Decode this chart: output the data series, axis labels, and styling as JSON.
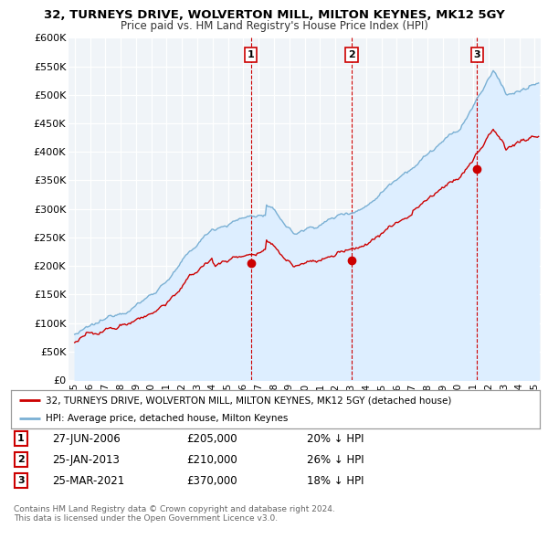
{
  "title": "32, TURNEYS DRIVE, WOLVERTON MILL, MILTON KEYNES, MK12 5GY",
  "subtitle": "Price paid vs. HM Land Registry's House Price Index (HPI)",
  "yticks": [
    0,
    50000,
    100000,
    150000,
    200000,
    250000,
    300000,
    350000,
    400000,
    450000,
    500000,
    550000,
    600000
  ],
  "ytick_labels": [
    "£0",
    "£50K",
    "£100K",
    "£150K",
    "£200K",
    "£250K",
    "£300K",
    "£350K",
    "£400K",
    "£450K",
    "£500K",
    "£550K",
    "£600K"
  ],
  "sale_points": [
    {
      "num": 1,
      "date_str": "27-JUN-2006",
      "year": 2006.49,
      "price": 205000,
      "label": "20% ↓ HPI"
    },
    {
      "num": 2,
      "date_str": "25-JAN-2013",
      "year": 2013.07,
      "price": 210000,
      "label": "26% ↓ HPI"
    },
    {
      "num": 3,
      "date_str": "25-MAR-2021",
      "year": 2021.23,
      "price": 370000,
      "label": "18% ↓ HPI"
    }
  ],
  "legend_property": "32, TURNEYS DRIVE, WOLVERTON MILL, MILTON KEYNES, MK12 5GY (detached house)",
  "legend_hpi": "HPI: Average price, detached house, Milton Keynes",
  "footnote1": "Contains HM Land Registry data © Crown copyright and database right 2024.",
  "footnote2": "This data is licensed under the Open Government Licence v3.0.",
  "property_color": "#cc0000",
  "hpi_color": "#7ab0d4",
  "hpi_fill_color": "#ddeeff",
  "background_color": "#ffffff",
  "plot_bg_color": "#f0f4f8",
  "grid_color": "#ffffff",
  "xlim": [
    1994.6,
    2025.4
  ],
  "ylim": [
    0,
    600000
  ],
  "xtick_years": [
    1995,
    1996,
    1997,
    1998,
    1999,
    2000,
    2001,
    2002,
    2003,
    2004,
    2005,
    2006,
    2007,
    2008,
    2009,
    2010,
    2011,
    2012,
    2013,
    2014,
    2015,
    2016,
    2017,
    2018,
    2019,
    2020,
    2021,
    2022,
    2023,
    2024,
    2025
  ]
}
